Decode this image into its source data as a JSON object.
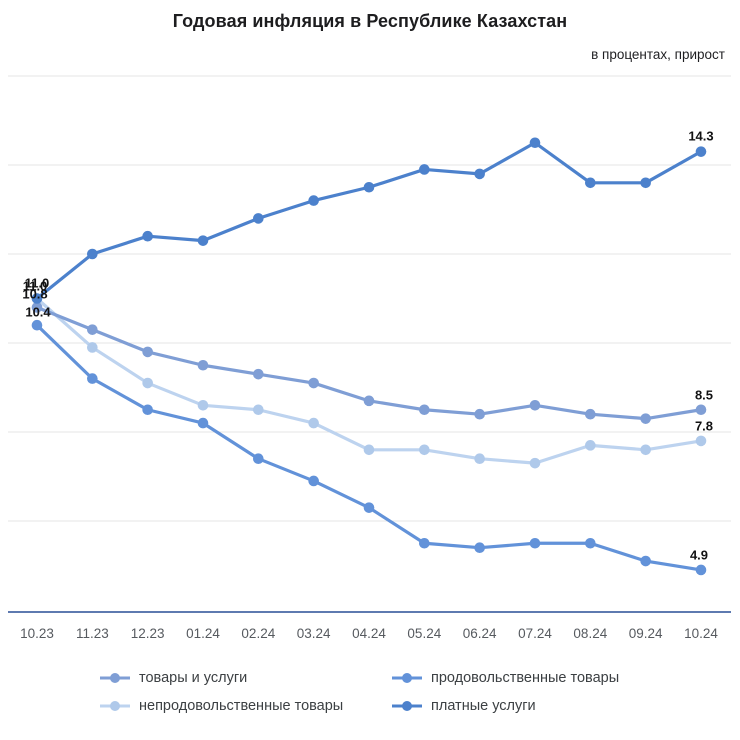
{
  "chart_data": {
    "type": "line",
    "title": "Годовая инфляция в Республике Казахстан",
    "subtitle": "в процентах, прирост",
    "categories": [
      "10.23",
      "11.23",
      "12.23",
      "01.24",
      "02.24",
      "03.24",
      "04.24",
      "05.24",
      "06.24",
      "07.24",
      "08.24",
      "09.24",
      "10.24"
    ],
    "series": [
      {
        "name": "товары и услуги",
        "color": "#7f9ed5",
        "values": [
          10.8,
          10.3,
          9.8,
          9.5,
          9.3,
          9.1,
          8.7,
          8.5,
          8.4,
          8.6,
          8.4,
          8.3,
          8.5
        ],
        "start_label": "10.8",
        "end_label": "8.5"
      },
      {
        "name": "продовольственные товары",
        "color": "#6292d9",
        "values": [
          10.4,
          9.2,
          8.5,
          8.2,
          7.4,
          6.9,
          6.3,
          5.5,
          5.4,
          5.5,
          5.5,
          5.1,
          4.9
        ],
        "start_label": "10.4",
        "end_label": "4.9"
      },
      {
        "name": "непродовольственные товары",
        "color": "#bdd3ef",
        "marker_color": "#afc9ea",
        "values": [
          11.0,
          9.9,
          9.1,
          8.6,
          8.5,
          8.2,
          7.6,
          7.6,
          7.4,
          7.3,
          7.7,
          7.6,
          7.8
        ],
        "start_label": "11.0",
        "end_label": "7.8"
      },
      {
        "name": "платные услуги",
        "color": "#4c81cc",
        "values": [
          11.0,
          12.0,
          12.4,
          12.3,
          12.8,
          13.2,
          13.5,
          13.9,
          13.8,
          14.5,
          13.6,
          13.6,
          14.3
        ],
        "start_label": "11.0",
        "end_label": "14.3"
      }
    ],
    "ylabel": "",
    "xlabel": "",
    "unit": "%",
    "ylim": [
      4,
      16
    ],
    "grid": true,
    "grid_values": [
      6,
      8,
      10,
      12,
      14,
      16
    ],
    "grid_color": "#e4e4e4",
    "axis_color": "#5e7ab0",
    "legend_position": "bottom"
  }
}
